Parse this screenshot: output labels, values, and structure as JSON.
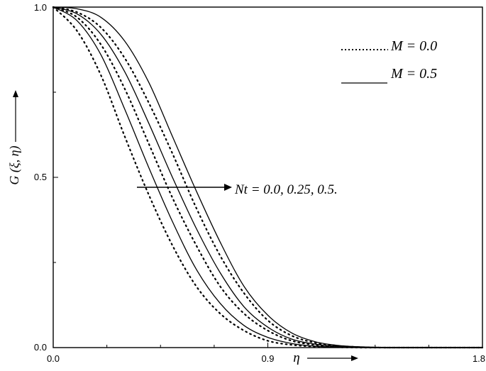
{
  "chart_data": {
    "type": "line",
    "xlabel": "η",
    "ylabel": "G (ξ, η)",
    "xlim": [
      0.0,
      1.8
    ],
    "ylim": [
      0.0,
      1.0
    ],
    "x_ticks": [
      "0.0",
      "0.9",
      "1.8"
    ],
    "y_ticks": [
      "0.0",
      "0.5",
      "1.0"
    ],
    "legend": {
      "position": "top-right",
      "entries": [
        {
          "text": "M = 0.0",
          "style": "dotted"
        },
        {
          "text": "M = 0.5",
          "style": "solid"
        }
      ]
    },
    "annotation": "Nt = 0.0, 0.25, 0.5.",
    "series": [
      {
        "label": "M=0.0, Nt=0.0",
        "style": "dotted",
        "x": [
          0,
          0.1,
          0.2,
          0.3,
          0.4,
          0.5,
          0.6,
          0.7,
          0.8,
          0.9,
          1.0,
          1.1,
          1.2,
          1.3,
          1.4,
          1.5,
          1.6,
          1.7,
          1.8
        ],
        "y": [
          1.0,
          0.93,
          0.8,
          0.62,
          0.45,
          0.3,
          0.18,
          0.1,
          0.05,
          0.02,
          0.008,
          0.003,
          0.001,
          0,
          0,
          0,
          0,
          0,
          0
        ]
      },
      {
        "label": "M=0.5, Nt=0.0",
        "style": "solid",
        "x": [
          0,
          0.1,
          0.2,
          0.3,
          0.4,
          0.5,
          0.6,
          0.7,
          0.8,
          0.9,
          1.0,
          1.1,
          1.2,
          1.3,
          1.4,
          1.5,
          1.6,
          1.7,
          1.8
        ],
        "y": [
          1.0,
          0.96,
          0.86,
          0.7,
          0.53,
          0.37,
          0.23,
          0.13,
          0.065,
          0.03,
          0.012,
          0.004,
          0.001,
          0,
          0,
          0,
          0,
          0,
          0
        ]
      },
      {
        "label": "M=0.0, Nt=0.25",
        "style": "dotted",
        "x": [
          0,
          0.1,
          0.2,
          0.3,
          0.4,
          0.5,
          0.6,
          0.7,
          0.8,
          0.9,
          1.0,
          1.1,
          1.2,
          1.3,
          1.4,
          1.5,
          1.6,
          1.7,
          1.8
        ],
        "y": [
          1.0,
          0.97,
          0.89,
          0.76,
          0.6,
          0.44,
          0.3,
          0.18,
          0.1,
          0.05,
          0.02,
          0.008,
          0.003,
          0.001,
          0,
          0,
          0,
          0,
          0
        ]
      },
      {
        "label": "M=0.5, Nt=0.25",
        "style": "solid",
        "x": [
          0,
          0.1,
          0.2,
          0.3,
          0.4,
          0.5,
          0.6,
          0.7,
          0.8,
          0.9,
          1.0,
          1.1,
          1.2,
          1.3,
          1.4,
          1.5,
          1.6,
          1.7,
          1.8
        ],
        "y": [
          1.0,
          0.98,
          0.92,
          0.81,
          0.66,
          0.5,
          0.35,
          0.22,
          0.12,
          0.06,
          0.025,
          0.01,
          0.003,
          0.001,
          0,
          0,
          0,
          0,
          0
        ]
      },
      {
        "label": "M=0.0, Nt=0.5",
        "style": "dotted",
        "x": [
          0,
          0.1,
          0.2,
          0.3,
          0.4,
          0.5,
          0.6,
          0.7,
          0.8,
          0.9,
          1.0,
          1.1,
          1.2,
          1.3,
          1.4,
          1.5,
          1.6,
          1.7,
          1.8
        ],
        "y": [
          1.0,
          0.985,
          0.94,
          0.85,
          0.72,
          0.57,
          0.41,
          0.27,
          0.16,
          0.08,
          0.035,
          0.014,
          0.005,
          0.001,
          0,
          0,
          0,
          0,
          0
        ]
      },
      {
        "label": "M=0.5, Nt=0.5",
        "style": "solid",
        "x": [
          0,
          0.1,
          0.2,
          0.3,
          0.4,
          0.5,
          0.6,
          0.7,
          0.8,
          0.9,
          1.0,
          1.1,
          1.2,
          1.3,
          1.4,
          1.5,
          1.6,
          1.7,
          1.8
        ],
        "y": [
          1.0,
          0.995,
          0.97,
          0.9,
          0.78,
          0.62,
          0.46,
          0.31,
          0.18,
          0.095,
          0.043,
          0.017,
          0.006,
          0.002,
          0,
          0,
          0,
          0,
          0
        ]
      }
    ]
  }
}
